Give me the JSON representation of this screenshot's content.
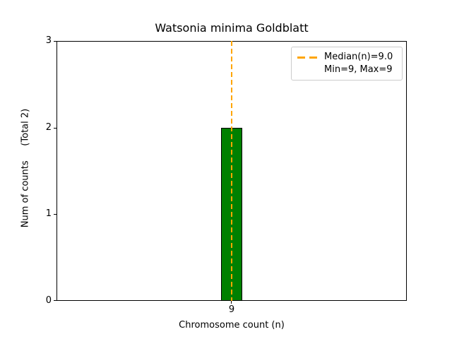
{
  "chart_data": {
    "type": "bar",
    "title": "Watsonia minima Goldblatt",
    "xlabel": "Chromosome count (n)",
    "ylabel": "Num of counts     (Total 2)",
    "categories": [
      "9"
    ],
    "values": [
      2
    ],
    "total_count": 2,
    "ylim": [
      0,
      3
    ],
    "ytick_labels": [
      "0",
      "1",
      "2",
      "3"
    ],
    "grid": false,
    "bar_color": "#008000",
    "bar_edge_color": "#000000",
    "median_line": {
      "value": 9.0,
      "color": "#FFA500",
      "style": "dashed"
    },
    "legend": {
      "position": "upper right",
      "entries": [
        {
          "label": "Median(n)=9.0",
          "marker": "orange-dashed-line"
        },
        {
          "label": "Min=9, Max=9",
          "marker": "none"
        }
      ]
    }
  }
}
